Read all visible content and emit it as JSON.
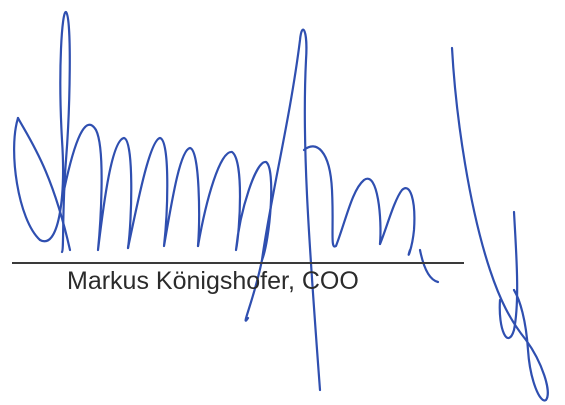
{
  "signature": {
    "signer_caption": "Markus Königshofer, COO",
    "ink_color": "#2f4fb0",
    "line_color": "#3a3a3a"
  }
}
